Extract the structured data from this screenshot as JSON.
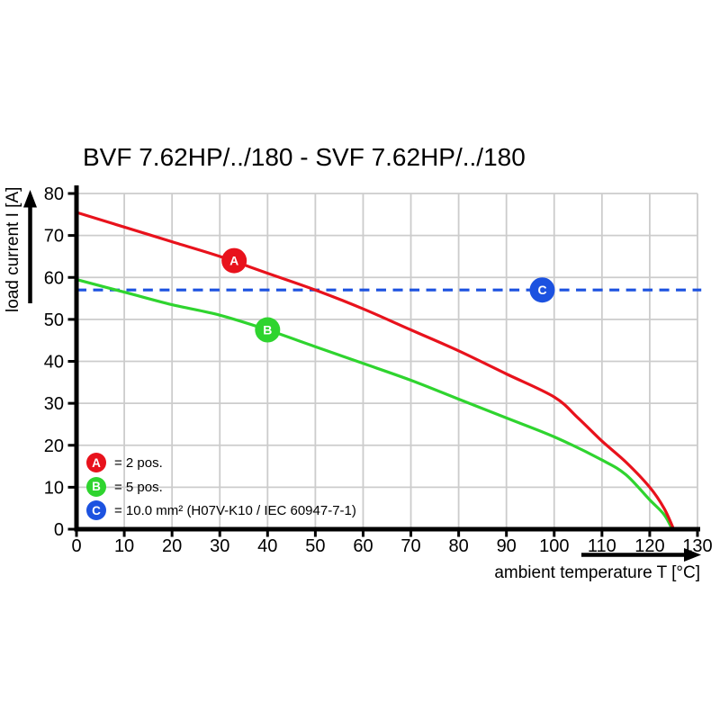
{
  "chart_data": {
    "type": "line",
    "title": "BVF 7.62HP/../180 - SVF 7.62HP/../180",
    "xlabel": "ambient temperature T [°C]",
    "ylabel": "load current I [A]",
    "xlim": [
      0,
      130
    ],
    "ylim": [
      0,
      80
    ],
    "x_ticks": [
      0,
      10,
      20,
      30,
      40,
      50,
      60,
      70,
      80,
      90,
      100,
      110,
      120,
      130
    ],
    "y_ticks": [
      0,
      10,
      20,
      30,
      40,
      50,
      60,
      70,
      80
    ],
    "grid": true,
    "grid_color": "#cccccc",
    "axis_color": "#000000",
    "background": "#ffffff",
    "legend_position": "bottom-left-inside",
    "series": [
      {
        "name": "A",
        "label": "2 pos.",
        "color": "#e8121c",
        "style": "solid",
        "points": [
          [
            0,
            75.5
          ],
          [
            10,
            72
          ],
          [
            20,
            68.5
          ],
          [
            30,
            65
          ],
          [
            40,
            61
          ],
          [
            50,
            57
          ],
          [
            60,
            52.5
          ],
          [
            70,
            47.5
          ],
          [
            80,
            42.5
          ],
          [
            90,
            37
          ],
          [
            100,
            31.5
          ],
          [
            105,
            26.5
          ],
          [
            110,
            21
          ],
          [
            115,
            16
          ],
          [
            120,
            10
          ],
          [
            123,
            5
          ],
          [
            125,
            0
          ]
        ],
        "marker": {
          "t": 33,
          "i": 64,
          "letter": "A"
        }
      },
      {
        "name": "B",
        "label": "5 pos.",
        "color": "#2fd42f",
        "style": "solid",
        "points": [
          [
            0,
            59.5
          ],
          [
            10,
            56.5
          ],
          [
            20,
            53.5
          ],
          [
            30,
            51
          ],
          [
            40,
            47.5
          ],
          [
            50,
            43.5
          ],
          [
            60,
            39.5
          ],
          [
            70,
            35.5
          ],
          [
            80,
            31
          ],
          [
            90,
            26.5
          ],
          [
            100,
            22
          ],
          [
            110,
            16.5
          ],
          [
            115,
            13
          ],
          [
            120,
            7
          ],
          [
            123,
            3.5
          ],
          [
            124.7,
            0
          ]
        ],
        "marker": {
          "t": 40,
          "i": 47.5,
          "letter": "B"
        }
      },
      {
        "name": "C",
        "label": "10.0 mm² (H07V-K10 / IEC 60947-7-1)",
        "color": "#1c52e0",
        "style": "dashed",
        "points": [
          [
            0,
            57
          ],
          [
            130.8,
            57
          ]
        ],
        "marker": {
          "t": 97.5,
          "i": 57,
          "letter": "C"
        }
      }
    ],
    "legend": [
      {
        "letter": "A",
        "text": "= 2 pos.",
        "color": "#e8121c"
      },
      {
        "letter": "B",
        "text": "= 5 pos.",
        "color": "#2fd42f"
      },
      {
        "letter": "C",
        "text": "= 10.0 mm² (H07V-K10 / IEC 60947-7-1)",
        "color": "#1c52e0"
      }
    ]
  }
}
